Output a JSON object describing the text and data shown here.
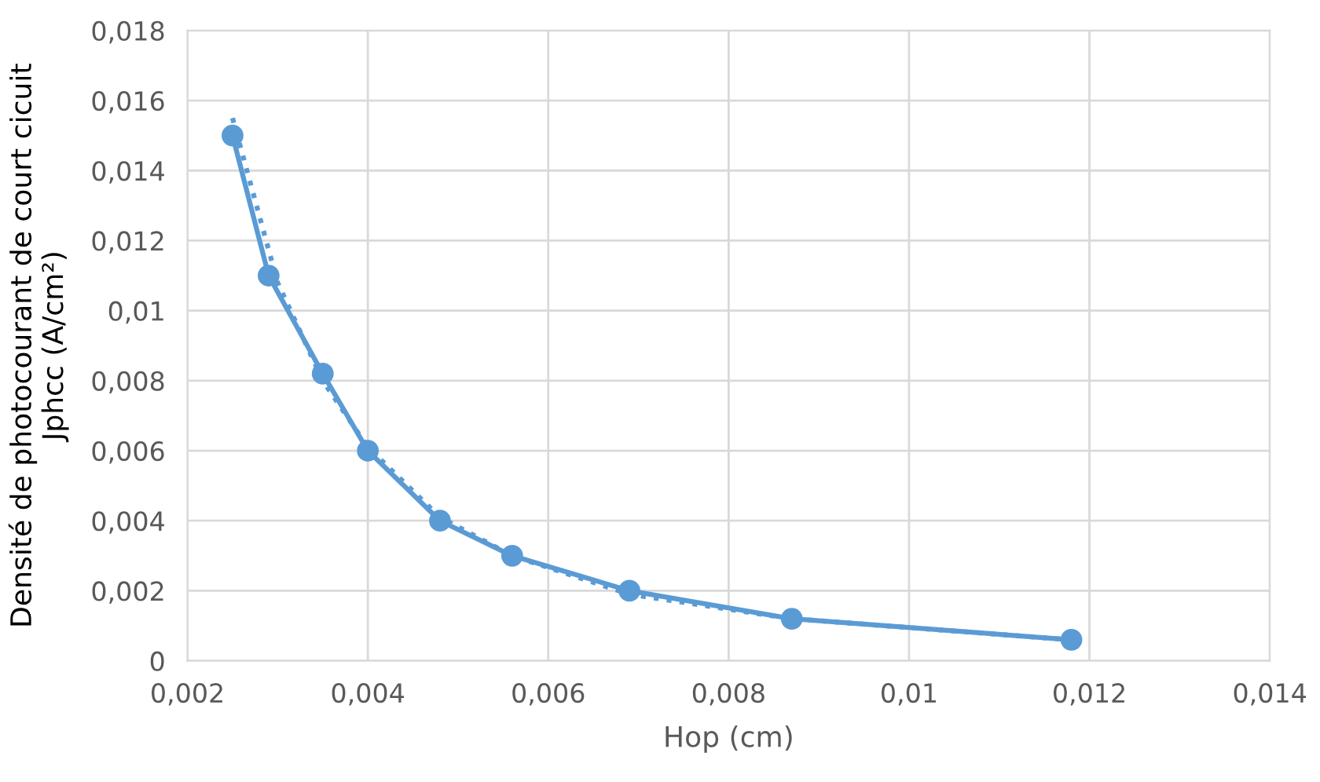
{
  "chart_data": {
    "type": "line",
    "xlabel": "Hop (cm)",
    "ylabel": "Densité de photocourant de court cicuit\nJphcc (A/cm²)",
    "x": [
      0.0025,
      0.0029,
      0.0035,
      0.004,
      0.0048,
      0.0056,
      0.0069,
      0.0087,
      0.0118
    ],
    "series": [
      {
        "color": "#5b9bd5",
        "values": [
          0.015,
          0.011,
          0.0082,
          0.006,
          0.004,
          0.003,
          0.002,
          0.0012,
          0.0006
        ],
        "marker": "circle",
        "line_style": "solid"
      },
      {
        "type": "line",
        "color": "#5b9bd5",
        "x": [
          0.0025,
          0.003,
          0.0035,
          0.004,
          0.0048,
          0.0056,
          0.0069,
          0.0087,
          0.0118
        ],
        "values": [
          0.0155,
          0.0108,
          0.008,
          0.0061,
          0.0041,
          0.003,
          0.0019,
          0.0012,
          0.0006
        ],
        "marker": "none",
        "line_style": "dotted"
      }
    ],
    "xlim": [
      0.002,
      0.014
    ],
    "ylim": [
      0,
      0.018
    ],
    "xticks": [
      {
        "value": 0.002,
        "label": "0,002"
      },
      {
        "value": 0.004,
        "label": "0,004"
      },
      {
        "value": 0.006,
        "label": "0,006"
      },
      {
        "value": 0.008,
        "label": "0,008"
      },
      {
        "value": 0.01,
        "label": "0,01"
      },
      {
        "value": 0.012,
        "label": "0,012"
      },
      {
        "value": 0.014,
        "label": "0,014"
      }
    ],
    "yticks": [
      0,
      {
        "value": 0.002,
        "label": "0,002"
      },
      {
        "value": 0.004,
        "label": "0,004"
      },
      {
        "value": 0.006,
        "label": "0,006"
      },
      {
        "value": 0.008,
        "label": "0,008"
      },
      {
        "value": 0.01,
        "label": "0,01"
      },
      {
        "value": 0.012,
        "label": "0,012"
      },
      {
        "value": 0.014,
        "label": "0,014"
      },
      {
        "value": 0.016,
        "label": "0,016"
      },
      {
        "value": 0.018,
        "label": "0,018"
      }
    ],
    "grid": true
  }
}
